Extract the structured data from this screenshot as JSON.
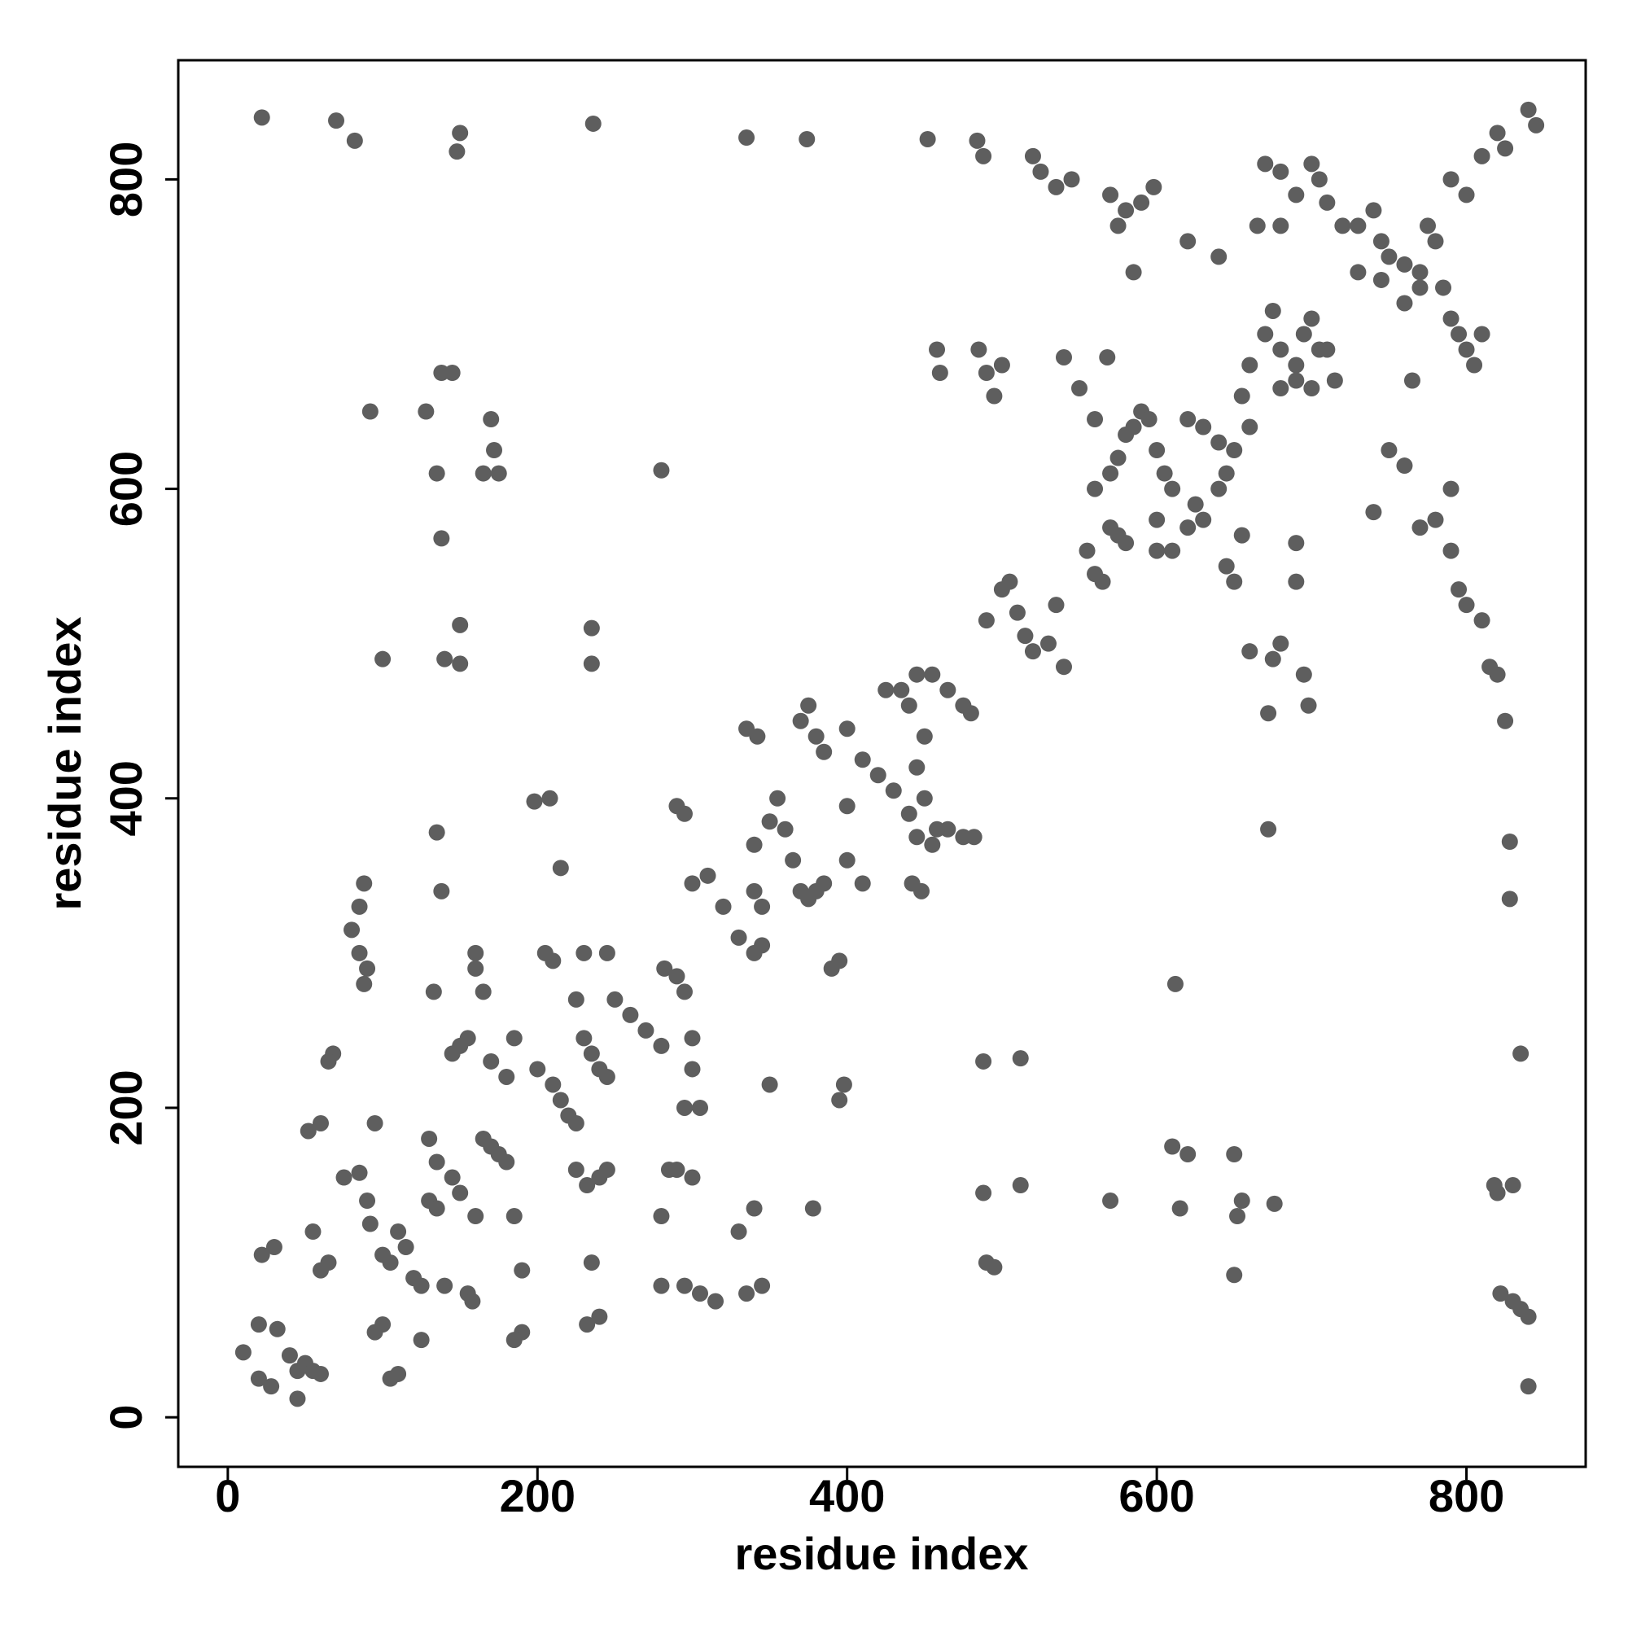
{
  "chart_data": {
    "type": "scatter",
    "x_label": "residue index",
    "y_label": "residue index",
    "x": [
      10,
      20,
      22,
      30,
      32,
      40,
      45,
      50,
      55,
      60,
      20,
      28,
      45,
      55,
      60,
      65,
      68,
      65,
      60,
      52,
      75,
      85,
      90,
      92,
      95,
      100,
      105,
      110,
      115,
      120,
      125,
      130,
      135,
      140,
      145,
      150,
      155,
      158,
      160,
      165,
      170,
      175,
      180,
      185,
      190,
      190,
      185,
      100,
      95,
      105,
      110,
      125,
      130,
      135,
      145,
      150,
      155,
      160,
      160,
      165,
      170,
      180,
      185,
      200,
      210,
      215,
      220,
      225,
      230,
      235,
      240,
      245,
      232,
      240,
      245,
      235,
      232,
      240,
      225,
      225,
      230,
      245,
      250,
      260,
      270,
      280,
      282,
      290,
      295,
      300,
      300,
      305,
      295,
      290,
      300,
      285,
      280,
      280,
      295,
      305,
      315,
      335,
      345,
      205,
      210,
      88,
      85,
      80,
      85,
      90,
      88,
      92,
      128,
      138,
      145,
      135,
      138,
      140,
      150,
      150,
      100,
      170,
      175,
      172,
      165,
      133,
      135,
      138,
      198,
      208,
      215,
      235,
      235,
      280,
      290,
      295,
      300,
      310,
      320,
      330,
      340,
      345,
      340,
      350,
      355,
      360,
      365,
      370,
      375,
      380,
      385,
      340,
      345,
      350,
      395,
      398,
      400,
      400,
      410,
      390,
      395,
      370,
      375,
      380,
      385,
      400,
      410,
      420,
      430,
      425,
      435,
      440,
      445,
      455,
      465,
      475,
      480,
      450,
      445,
      450,
      440,
      445,
      455,
      465,
      448,
      442,
      335,
      342,
      458,
      460,
      485,
      490,
      495,
      500,
      488,
      490,
      495,
      512,
      512,
      488,
      490,
      500,
      505,
      510,
      515,
      520,
      530,
      535,
      540,
      555,
      560,
      565,
      570,
      575,
      580,
      560,
      570,
      575,
      580,
      585,
      590,
      595,
      600,
      605,
      610,
      600,
      610,
      620,
      625,
      630,
      640,
      645,
      620,
      630,
      640,
      650,
      655,
      660,
      600,
      645,
      650,
      655,
      660,
      675,
      680,
      690,
      690,
      695,
      672,
      698,
      672,
      540,
      550,
      560,
      568,
      570,
      612,
      610,
      620,
      615,
      650,
      652,
      650,
      655,
      676,
      660,
      670,
      675,
      680,
      690,
      695,
      700,
      705,
      710,
      715,
      680,
      690,
      700,
      670,
      680,
      690,
      700,
      705,
      710,
      720,
      730,
      740,
      745,
      750,
      760,
      770,
      775,
      780,
      785,
      790,
      795,
      800,
      805,
      810,
      730,
      745,
      760,
      770,
      765,
      680,
      665,
      640,
      620,
      585,
      580,
      590,
      575,
      520,
      525,
      535,
      790,
      800,
      810,
      820,
      825,
      840,
      845,
      750,
      760,
      740,
      770,
      780,
      790,
      790,
      795,
      800,
      810,
      815,
      820,
      825,
      828,
      828,
      835,
      818,
      820,
      830,
      822,
      830,
      835,
      840,
      840,
      330,
      340,
      378,
      475,
      458,
      482,
      22,
      70,
      82,
      148,
      150,
      236,
      335,
      374,
      452,
      484,
      488,
      545,
      570,
      598
    ],
    "values": [
      42,
      60,
      105,
      110,
      57,
      40,
      30,
      35,
      30,
      28,
      25,
      20,
      12,
      120,
      95,
      100,
      235,
      230,
      190,
      185,
      155,
      158,
      140,
      125,
      190,
      105,
      100,
      120,
      110,
      90,
      85,
      180,
      165,
      85,
      155,
      145,
      80,
      75,
      130,
      180,
      175,
      170,
      165,
      130,
      95,
      55,
      50,
      60,
      55,
      25,
      28,
      50,
      140,
      135,
      235,
      240,
      245,
      290,
      300,
      275,
      230,
      220,
      245,
      225,
      215,
      205,
      195,
      190,
      245,
      235,
      225,
      220,
      150,
      155,
      160,
      100,
      60,
      65,
      160,
      270,
      300,
      300,
      270,
      260,
      250,
      240,
      290,
      285,
      275,
      245,
      225,
      200,
      200,
      160,
      155,
      160,
      130,
      85,
      85,
      80,
      75,
      80,
      85,
      300,
      295,
      345,
      330,
      315,
      300,
      290,
      280,
      650,
      650,
      675,
      675,
      610,
      568,
      490,
      487,
      512,
      490,
      645,
      610,
      625,
      610,
      275,
      378,
      340,
      398,
      400,
      355,
      510,
      487,
      612,
      395,
      390,
      345,
      350,
      330,
      310,
      300,
      305,
      370,
      385,
      400,
      380,
      360,
      340,
      335,
      340,
      345,
      340,
      330,
      215,
      205,
      215,
      395,
      360,
      345,
      290,
      295,
      450,
      460,
      440,
      430,
      445,
      425,
      415,
      405,
      470,
      470,
      460,
      480,
      480,
      470,
      460,
      455,
      440,
      420,
      400,
      390,
      375,
      370,
      380,
      340,
      345,
      445,
      440,
      690,
      675,
      690,
      675,
      660,
      680,
      230,
      100,
      97,
      232,
      150,
      145,
      515,
      535,
      540,
      520,
      505,
      495,
      500,
      525,
      485,
      560,
      545,
      540,
      575,
      570,
      565,
      600,
      610,
      620,
      635,
      640,
      650,
      645,
      625,
      610,
      600,
      580,
      560,
      575,
      590,
      580,
      600,
      610,
      645,
      640,
      630,
      625,
      660,
      640,
      560,
      550,
      540,
      570,
      495,
      490,
      500,
      565,
      540,
      480,
      455,
      460,
      380,
      685,
      665,
      645,
      685,
      140,
      280,
      175,
      170,
      135,
      170,
      130,
      92,
      140,
      138,
      680,
      700,
      715,
      690,
      680,
      700,
      710,
      690,
      690,
      670,
      665,
      670,
      665,
      810,
      805,
      790,
      810,
      800,
      785,
      770,
      770,
      780,
      760,
      750,
      745,
      740,
      770,
      760,
      730,
      710,
      700,
      690,
      680,
      700,
      740,
      735,
      720,
      730,
      670,
      770,
      770,
      750,
      760,
      740,
      780,
      785,
      770,
      815,
      805,
      795,
      800,
      790,
      815,
      830,
      820,
      845,
      835,
      625,
      615,
      585,
      575,
      580,
      600,
      560,
      535,
      525,
      515,
      485,
      480,
      450,
      372,
      335,
      235,
      150,
      145,
      150,
      80,
      75,
      70,
      65,
      20,
      120,
      135,
      135,
      375,
      380,
      375,
      840,
      838,
      825,
      818,
      830,
      836,
      827,
      826,
      826,
      825,
      815,
      800,
      790,
      795
    ],
    "color": "#5e5e5e",
    "xlim": [
      -32,
      877
    ],
    "ylim": [
      -32,
      877
    ],
    "xticks": [
      0,
      200,
      400,
      600,
      800
    ],
    "yticks": [
      0,
      200,
      400,
      600,
      800
    ]
  }
}
